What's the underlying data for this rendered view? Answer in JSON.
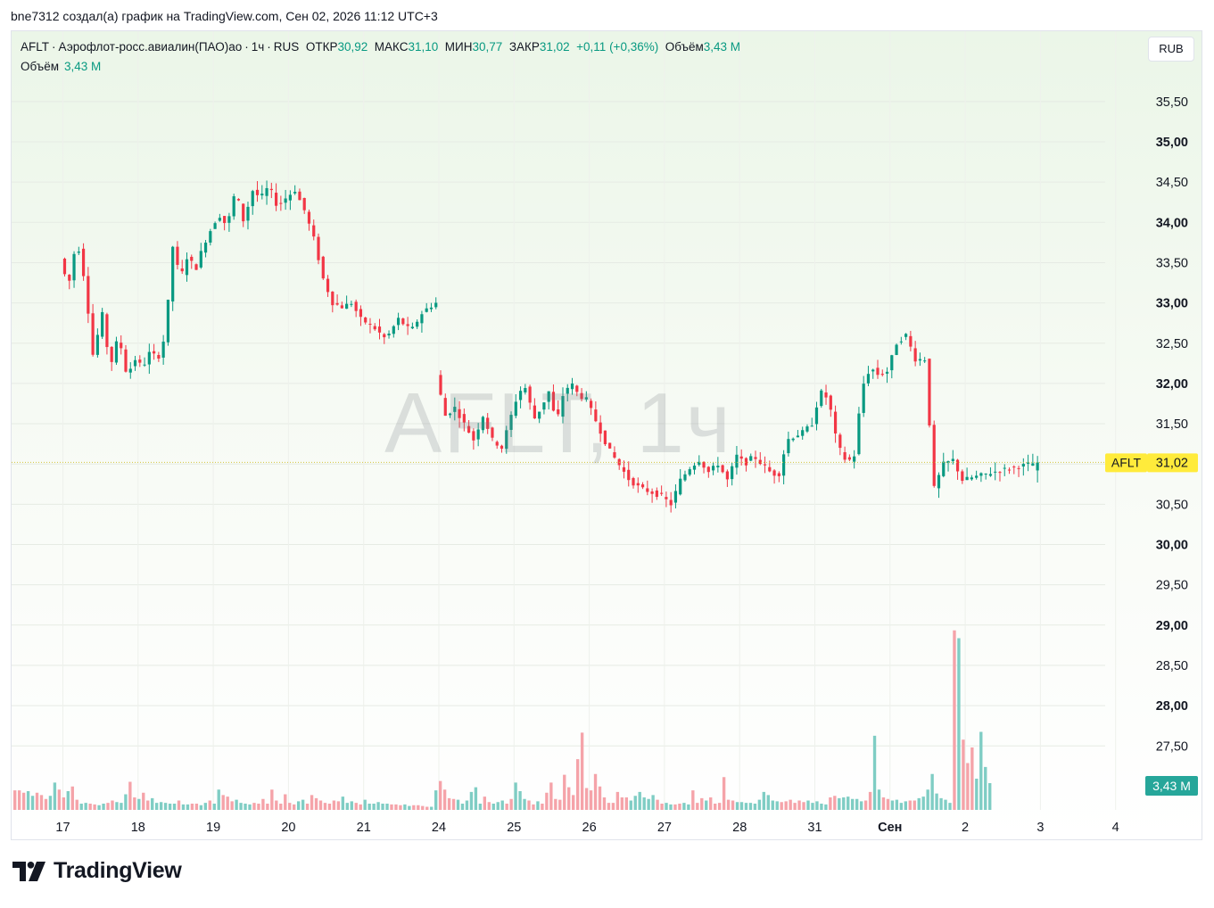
{
  "caption": "bne7312 создал(а) график на TradingView.com, Сен 02, 2026 11:12 UTC+3",
  "legend": {
    "symbol": "AFLT",
    "name": "Аэрофлот-росс.авиалин(ПАО)ао",
    "interval": "1ч",
    "exchange": "RUS",
    "open_label": "ОТКР",
    "open": "30,92",
    "high_label": "МАКС",
    "high": "31,10",
    "low_label": "МИН",
    "low": "30,77",
    "close_label": "ЗАКР",
    "close": "31,02",
    "change": "+0,11 (+0,36%)",
    "volume_label": "Объём",
    "volume": "3,43 M"
  },
  "volume_legend": {
    "label": "Объём",
    "value": "3,43 M"
  },
  "currency_button": "RUB",
  "watermark": "AFLT, 1ч",
  "footer_brand": "TradingView",
  "colors": {
    "up": "#089981",
    "down": "#f23645",
    "volume_up": "#7fcdc4",
    "volume_down": "#f5a3a9",
    "last_price_bg": "#ffeb3b",
    "volume_label_bg": "#26a69a"
  },
  "chart_data": {
    "type": "candlestick",
    "symbol": "AFLT",
    "interval": "1ч",
    "ylim": [
      27.3,
      35.9
    ],
    "y_ticks": [
      "35,50",
      "35,00",
      "34,50",
      "34,00",
      "33,50",
      "33,00",
      "32,50",
      "32,00",
      "31,50",
      "31,00",
      "30,50",
      "30,00",
      "29,50",
      "29,00",
      "28,50",
      "28,00",
      "27,50"
    ],
    "y_tick_values": [
      35.5,
      35.0,
      34.5,
      34.0,
      33.5,
      33.0,
      32.5,
      32.0,
      31.5,
      31.0,
      30.5,
      30.0,
      29.5,
      29.0,
      28.5,
      28.0,
      27.5
    ],
    "x_ticks": [
      "17",
      "18",
      "19",
      "20",
      "21",
      "24",
      "25",
      "26",
      "27",
      "28",
      "31",
      "Сен",
      "2",
      "3",
      "4"
    ],
    "last_price": {
      "symbol": "AFLT",
      "value": "31,02"
    },
    "last_volume": "3,43 M",
    "grid": true,
    "series": [
      {
        "day": "17",
        "path": [
          33.55,
          33.2,
          33.8,
          33.25,
          32.3,
          32.9,
          32.2,
          32.6,
          32.1,
          32.3
        ]
      },
      {
        "day": "18",
        "path": [
          32.3,
          32.2,
          32.4,
          32.3,
          32.6,
          33.7,
          33.3,
          33.6,
          33.4,
          33.7,
          33.9
        ]
      },
      {
        "day": "19",
        "path": [
          33.9,
          34.1,
          33.95,
          34.4,
          34.0,
          34.4,
          34.3,
          34.45,
          34.2,
          34.3
        ]
      },
      {
        "day": "20",
        "path": [
          34.3,
          34.4,
          34.15,
          33.8,
          33.3,
          33.0,
          32.95,
          33.0,
          32.8
        ]
      },
      {
        "day": "21",
        "path": [
          32.8,
          32.7,
          32.55,
          32.8,
          32.65,
          32.9,
          33.0
        ]
      },
      {
        "day": "24",
        "path": [
          32.1,
          31.6,
          31.7,
          31.5,
          31.3,
          31.6,
          31.3,
          31.2,
          31.6
        ]
      },
      {
        "day": "25",
        "path": [
          31.6,
          31.9,
          31.95,
          31.55,
          31.7,
          31.9,
          31.5,
          31.9,
          32.0,
          31.85,
          31.8
        ]
      },
      {
        "day": "26",
        "path": [
          31.8,
          31.5,
          31.2,
          31.0,
          30.8,
          30.7,
          30.65,
          30.6
        ]
      },
      {
        "day": "27",
        "path": [
          30.6,
          30.5,
          30.8,
          30.95,
          31.05,
          30.9,
          31.0,
          30.8,
          31.1
        ]
      },
      {
        "day": "28",
        "path": [
          31.1,
          31.0,
          31.1,
          31.0,
          30.9,
          30.85,
          31.3,
          31.35,
          31.4,
          31.5
        ]
      },
      {
        "day": "31",
        "path": [
          31.5,
          31.9,
          31.8,
          31.25,
          31.05,
          31.05,
          31.95,
          32.2,
          32.1,
          32.15
        ]
      },
      {
        "day": "Сен",
        "path": [
          32.15,
          32.5,
          32.6,
          32.3,
          32.3,
          30.7,
          31.0,
          31.05,
          30.8
        ]
      },
      {
        "day": "2",
        "path": [
          30.8,
          30.92,
          31.02
        ]
      }
    ],
    "volume": {
      "peak_million": 24.0,
      "values_million": [
        2.5,
        2.5,
        2.2,
        2.4,
        1.8,
        2.2,
        1.9,
        1.4,
        1.8,
        3.5,
        2.6,
        1.6,
        2.4,
        3.0,
        1.3,
        0.8,
        0.9,
        0.8,
        0.7,
        0.6,
        0.8,
        0.9,
        1.2,
        1.0,
        0.9,
        2.0,
        3.6,
        1.6,
        1.4,
        2.2,
        1.2,
        1.5,
        0.9,
        1.0,
        0.9,
        0.8,
        0.8,
        1.2,
        0.7,
        0.7,
        0.8,
        0.8,
        0.6,
        0.9,
        1.2,
        0.8,
        2.6,
        1.9,
        1.7,
        1.1,
        1.3,
        0.9,
        0.8,
        0.7,
        0.9,
        0.8,
        1.4,
        0.8,
        2.6,
        1.2,
        0.8,
        2.0,
        0.9,
        0.7,
        1.1,
        1.3,
        0.8,
        1.9,
        1.5,
        1.2,
        0.9,
        0.8,
        1.2,
        1.1,
        1.7,
        0.9,
        1.1,
        0.9,
        0.7,
        1.3,
        0.8,
        0.8,
        1.0,
        0.8,
        0.8,
        0.7,
        0.7,
        0.6,
        0.7,
        0.5,
        0.6,
        0.6,
        0.5,
        0.4,
        0.4,
        2.5,
        3.7,
        2.6,
        1.5,
        1.4,
        1.3,
        0.8,
        1.2,
        2.3,
        2.9,
        0.8,
        1.7,
        1.0,
        0.8,
        1.0,
        1.2,
        0.8,
        1.4,
        3.5,
        2.4,
        1.4,
        1.2,
        0.7,
        1.1,
        0.8,
        2.2,
        3.5,
        1.4,
        1.3,
        4.5,
        2.9,
        1.9,
        6.5,
        9.9,
        2.8,
        2.5,
        4.6,
        3.0,
        1.6,
        0.9,
        0.9,
        2.3,
        1.6,
        1.6,
        1.2,
        1.8,
        2.3,
        1.6,
        1.4,
        1.9,
        1.3,
        0.8,
        0.9,
        0.7,
        0.7,
        0.8,
        0.9,
        0.7,
        2.5,
        0.9,
        1.5,
        1.2,
        1.6,
        0.8,
        0.9,
        4.2,
        1.3,
        1.2,
        1.0,
        1.0,
        0.9,
        0.9,
        0.8,
        1.3,
        2.3,
        1.9,
        1.2,
        1.1,
        1.0,
        1.1,
        1.3,
        0.9,
        1.2,
        1.0,
        1.2,
        0.9,
        1.1,
        0.8,
        0.7,
        1.6,
        1.8,
        1.5,
        1.6,
        1.7,
        1.4,
        1.4,
        1.1,
        1.2,
        2.3,
        9.5,
        2.6,
        1.6,
        1.4,
        1.2,
        1.3,
        0.9,
        1.1,
        1.2,
        1.2,
        1.5,
        1.7,
        2.6,
        4.6,
        2.1,
        1.5,
        1.3,
        0.9,
        23.0,
        22.0,
        9.0,
        6.0,
        8.0,
        4.0,
        10.0,
        5.5,
        3.43
      ]
    }
  }
}
